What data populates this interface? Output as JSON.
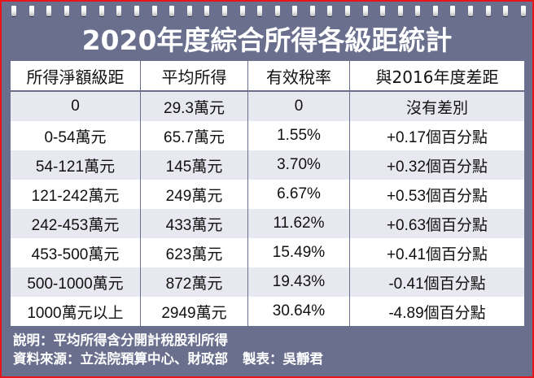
{
  "title": "2020年度綜合所得各級距統計",
  "ring_count": 30,
  "colors": {
    "frame_bg": "#6a6f8e",
    "outer_border": "#e8141c",
    "row_alt": "#e8e8f0",
    "row_plain": "#ffffff",
    "title_text": "#ffffff"
  },
  "table": {
    "headers": [
      "所得淨額級距",
      "平均所得",
      "有效稅率",
      "與2016年度差距"
    ],
    "rows": [
      [
        "0",
        "29.3萬元",
        "0",
        "沒有差別"
      ],
      [
        "0-54萬元",
        "65.7萬元",
        "1.55%",
        "+0.17個百分點"
      ],
      [
        "54-121萬元",
        "145萬元",
        "3.70%",
        "+0.32個百分點"
      ],
      [
        "121-242萬元",
        "249萬元",
        "6.67%",
        "+0.53個百分點"
      ],
      [
        "242-453萬元",
        "433萬元",
        "11.62%",
        "+0.63個百分點"
      ],
      [
        "453-500萬元",
        "623萬元",
        "15.49%",
        "+0.41個百分點"
      ],
      [
        "500-1000萬元",
        "872萬元",
        "19.43%",
        "-0.41個百分點"
      ],
      [
        "1000萬元以上",
        "2949萬元",
        "30.64%",
        "-4.89個百分點"
      ]
    ]
  },
  "notes": {
    "explanation": "說明：平均所得含分開計稅股利所得",
    "source": "資料來源：立法院預算中心、財政部",
    "author": "製表：吳靜君"
  }
}
